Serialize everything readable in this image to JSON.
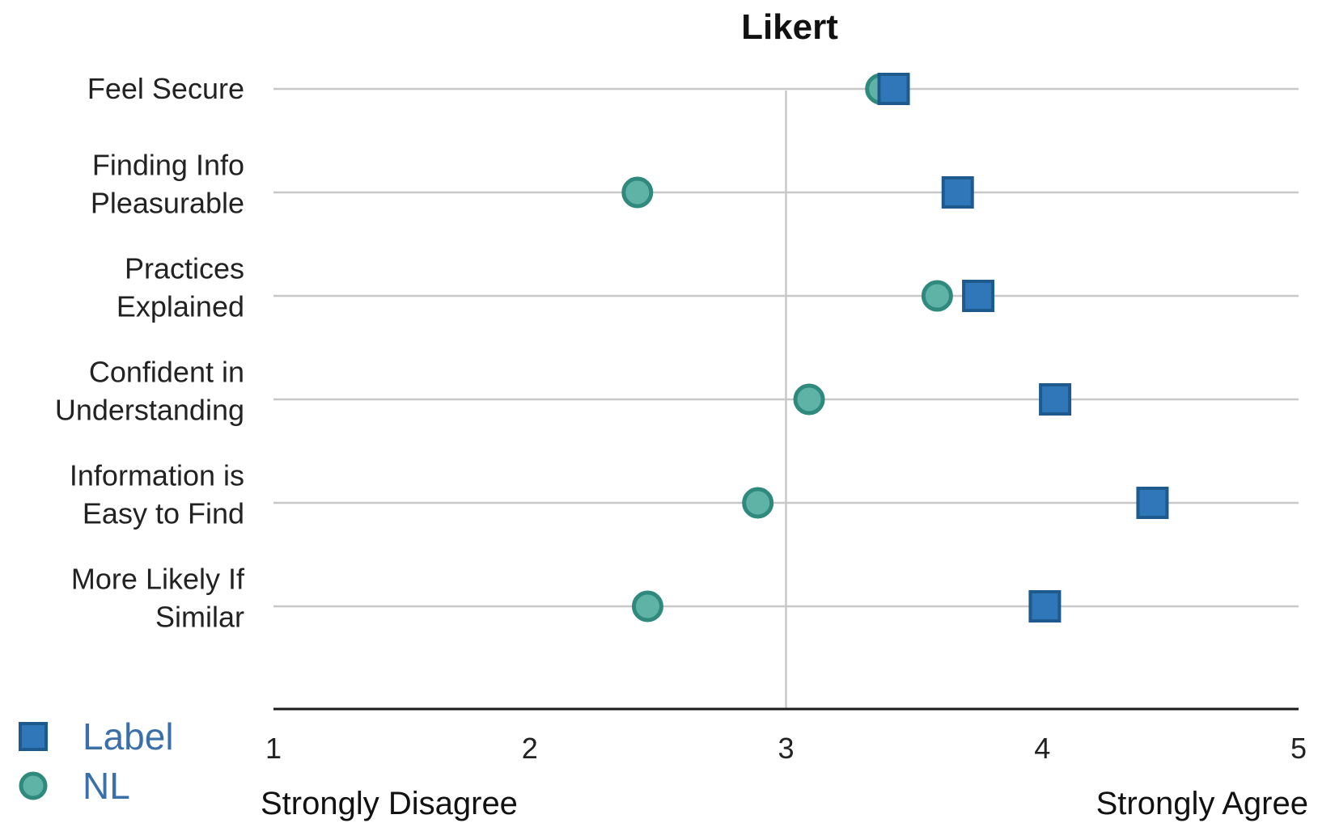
{
  "chart_data": {
    "type": "scatter",
    "title": "Likert",
    "categories": [
      [
        "Feel Secure"
      ],
      [
        "Finding Info",
        "Pleasurable"
      ],
      [
        "Practices",
        "Explained"
      ],
      [
        "Confident in",
        "Understanding"
      ],
      [
        "Information is",
        "Easy to Find"
      ],
      [
        "More Likely If",
        "Similar"
      ]
    ],
    "x_ticks": [
      "1",
      "2",
      "3",
      "4",
      "5"
    ],
    "xlim": [
      1,
      5
    ],
    "x_scale_labels": {
      "left": "Strongly Disagree",
      "right": "Strongly Agree"
    },
    "grid": "horizontal lines per category, vertical reference line at 3",
    "legend_position": "bottom-left",
    "series": [
      {
        "name": "Label",
        "marker": "square",
        "color": "#2f77b8",
        "values": [
          3.42,
          3.67,
          3.75,
          4.05,
          4.43,
          4.01
        ]
      },
      {
        "name": "NL",
        "marker": "circle",
        "color": "#5fb3a6",
        "values": [
          3.37,
          2.42,
          3.59,
          3.09,
          2.89,
          2.46
        ]
      }
    ]
  }
}
